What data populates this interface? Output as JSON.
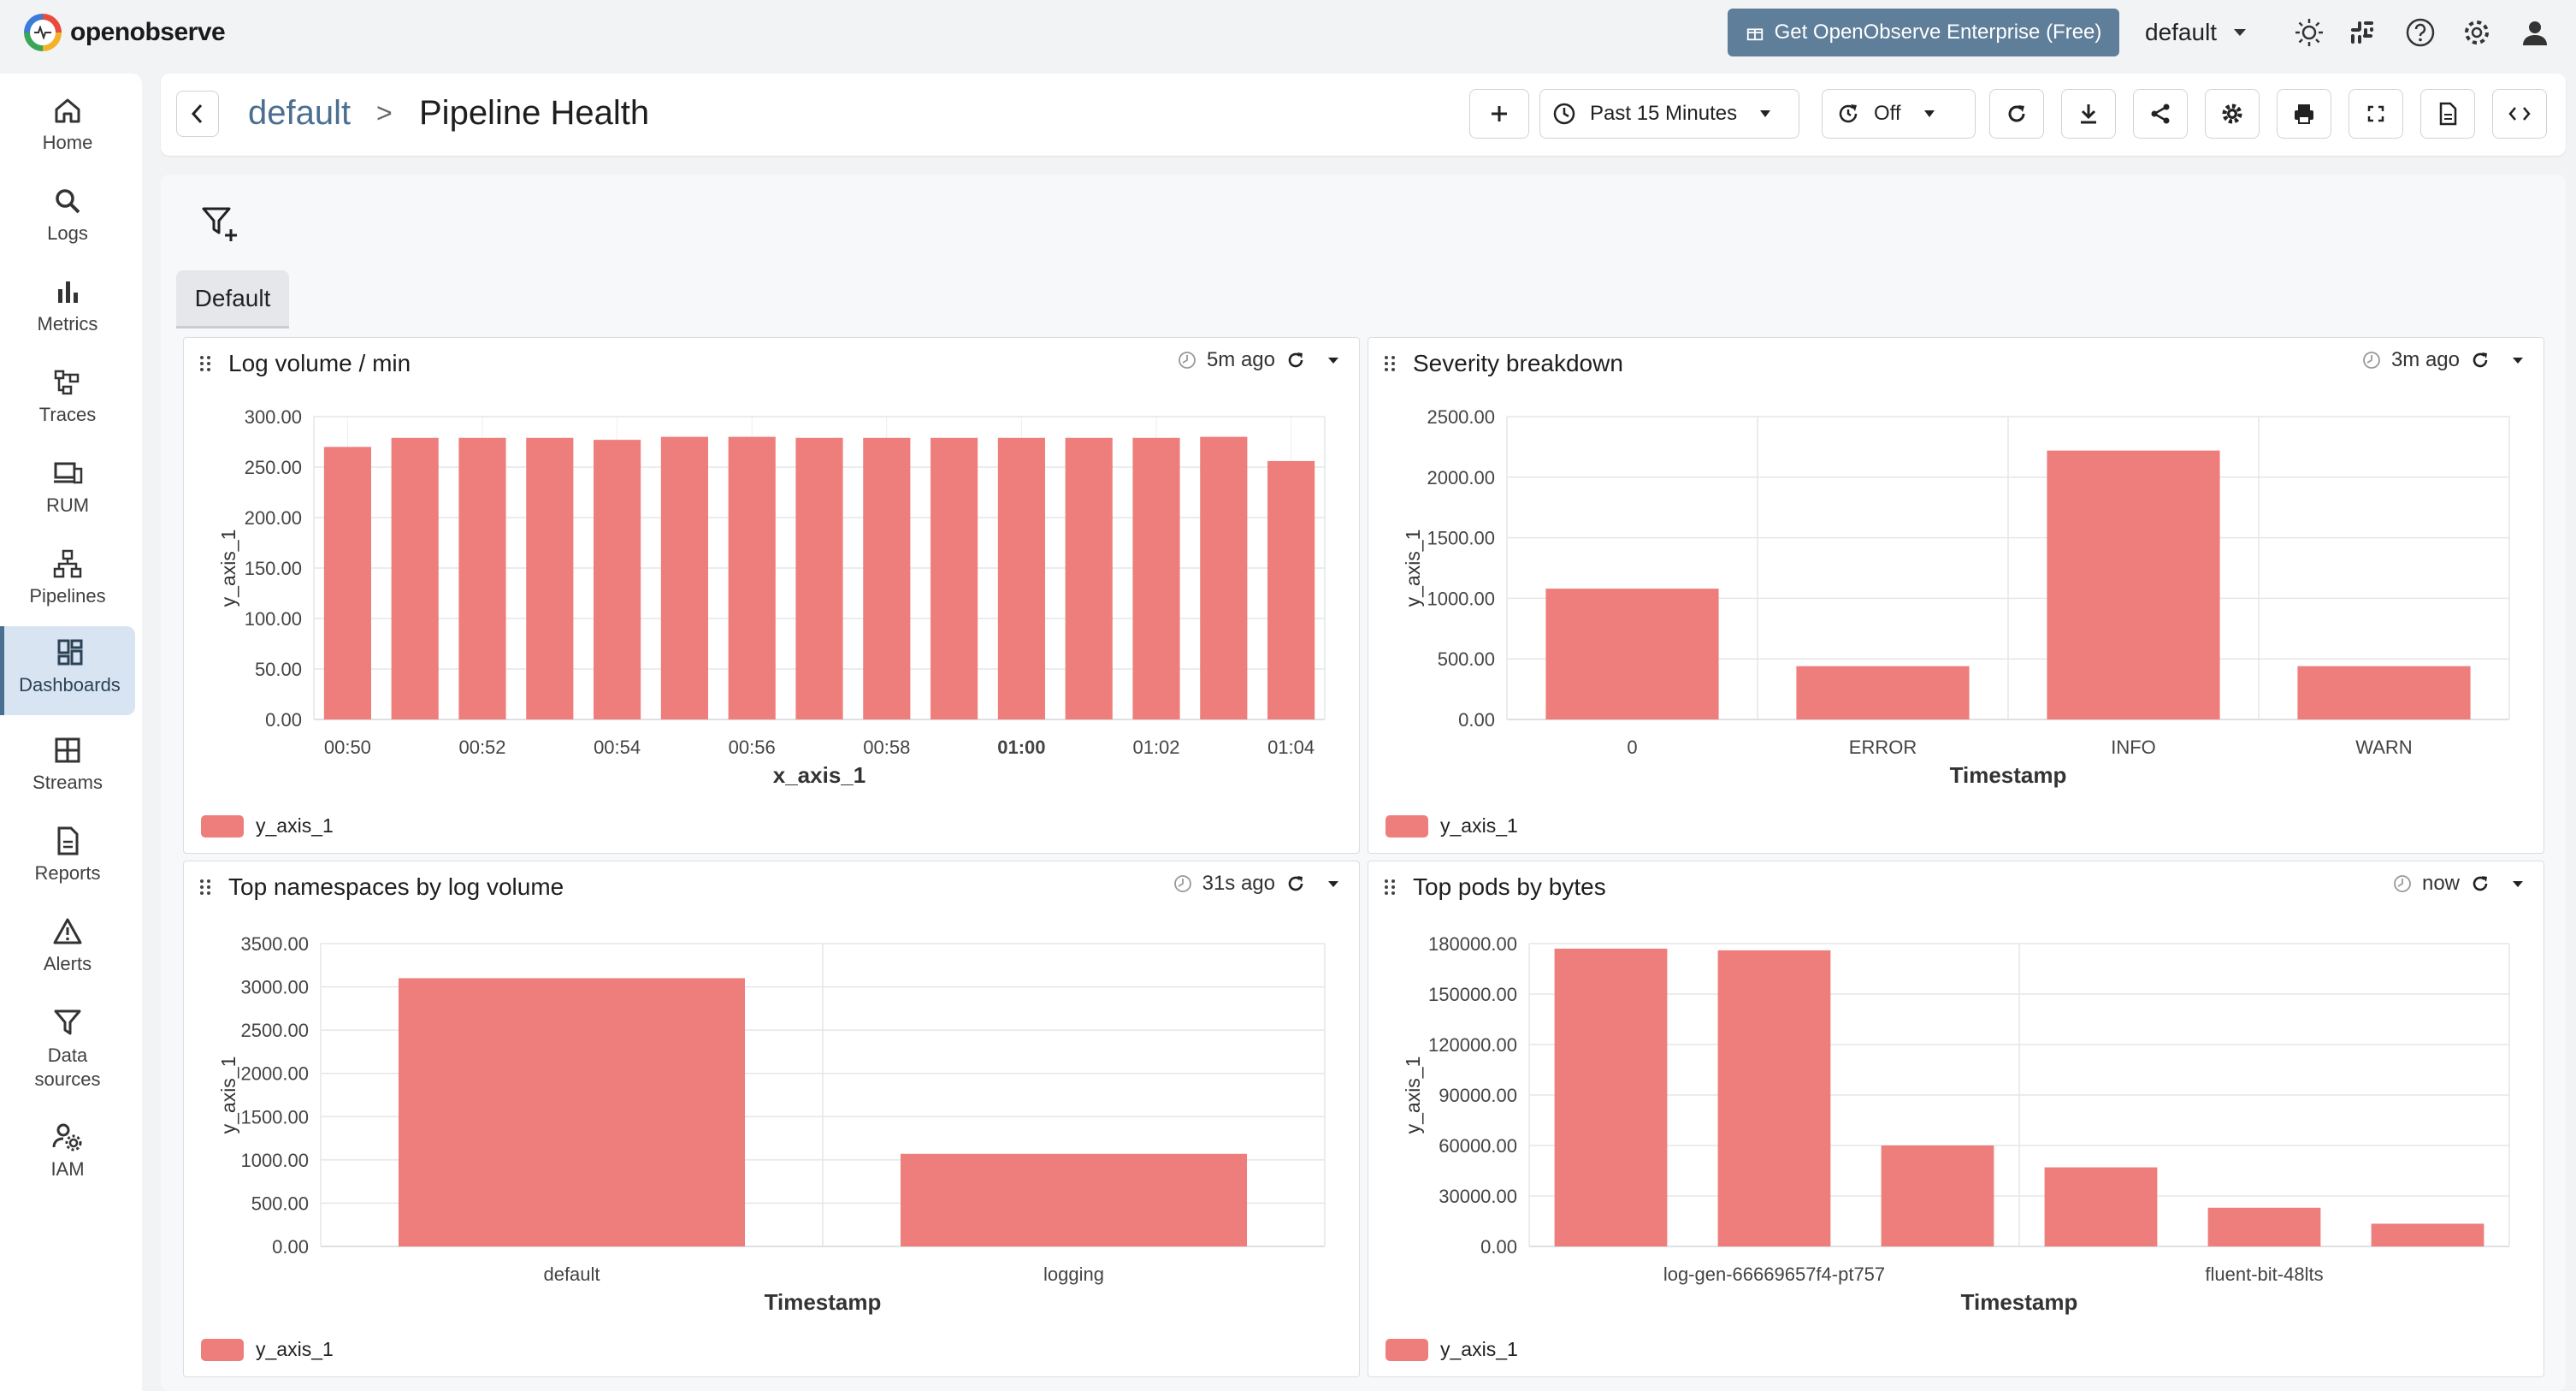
{
  "app": {
    "logo_text": "openobserve"
  },
  "topbar": {
    "enterprise_label": "Get OpenObserve Enterprise (Free)",
    "org": "default",
    "icons": [
      "sun-icon",
      "slack-icon",
      "help-icon",
      "gear-icon",
      "user-icon"
    ]
  },
  "sidebar": {
    "items": [
      {
        "label": "Home",
        "icon": "home-icon"
      },
      {
        "label": "Logs",
        "icon": "search-icon"
      },
      {
        "label": "Metrics",
        "icon": "bar-chart-icon"
      },
      {
        "label": "Traces",
        "icon": "traces-icon"
      },
      {
        "label": "RUM",
        "icon": "devices-icon"
      },
      {
        "label": "Pipelines",
        "icon": "pipeline-icon"
      },
      {
        "label": "Dashboards",
        "icon": "dashboard-icon",
        "active": true
      },
      {
        "label": "Streams",
        "icon": "streams-icon"
      },
      {
        "label": "Reports",
        "icon": "report-icon"
      },
      {
        "label": "Alerts",
        "icon": "alert-icon"
      },
      {
        "label": "Data sources",
        "icon": "filter-icon"
      },
      {
        "label": "IAM",
        "icon": "users-gear-icon"
      }
    ]
  },
  "header": {
    "folder": "default",
    "separator": ">",
    "title": "Pipeline Health",
    "time_range": "Past 15 Minutes",
    "refresh": "Off"
  },
  "tabs": [
    {
      "label": "Default",
      "active": true
    }
  ],
  "colors": {
    "bar": "#ee7e7b",
    "accent": "#4b6f91",
    "enterprise": "#5e7e9a"
  },
  "panels": [
    {
      "title": "Log volume / min",
      "status": "5m ago",
      "legend": "y_axis_1",
      "chart_data": {
        "type": "bar",
        "x_tick_labels": [
          "00:50",
          "00:52",
          "00:54",
          "00:56",
          "00:58",
          "01:00",
          "01:02",
          "01:04"
        ],
        "bold_tick": "01:00",
        "values": [
          270,
          279,
          279,
          279,
          277,
          280,
          280,
          279,
          279,
          279,
          279,
          279,
          279,
          280,
          256
        ],
        "y_ticks": [
          "0.00",
          "50.00",
          "100.00",
          "150.00",
          "200.00",
          "250.00",
          "300.00"
        ],
        "ylim": [
          0,
          300
        ],
        "xlabel": "x_axis_1",
        "ylabel": "y_axis_1",
        "grid": true
      }
    },
    {
      "title": "Severity breakdown",
      "status": "3m ago",
      "legend": "y_axis_1",
      "chart_data": {
        "type": "bar",
        "categories": [
          "0",
          "ERROR",
          "INFO",
          "WARN"
        ],
        "values": [
          1080,
          440,
          2220,
          440
        ],
        "y_ticks": [
          "0.00",
          "500.00",
          "1000.00",
          "1500.00",
          "2000.00",
          "2500.00"
        ],
        "ylim": [
          0,
          2500
        ],
        "xlabel": "Timestamp",
        "ylabel": "y_axis_1",
        "grid": true
      }
    },
    {
      "title": "Top namespaces by log volume",
      "status": "31s ago",
      "legend": "y_axis_1",
      "chart_data": {
        "type": "bar",
        "categories": [
          "default",
          "logging"
        ],
        "values": [
          3100,
          1070
        ],
        "y_ticks": [
          "0.00",
          "500.00",
          "1000.00",
          "1500.00",
          "2000.00",
          "2500.00",
          "3000.00",
          "3500.00"
        ],
        "ylim": [
          0,
          3500
        ],
        "xlabel": "Timestamp",
        "ylabel": "y_axis_1",
        "grid": true
      }
    },
    {
      "title": "Top pods by bytes",
      "status": "now",
      "legend": "y_axis_1",
      "chart_data": {
        "type": "bar",
        "categories": [
          "log-gen-66669657f4-pt757",
          "",
          "",
          "fluent-bit-48lts",
          "",
          ""
        ],
        "values": [
          177000,
          176000,
          60000,
          47000,
          23000,
          13500
        ],
        "y_ticks": [
          "0.00",
          "30000.00",
          "60000.00",
          "90000.00",
          "120000.00",
          "150000.00",
          "180000.00"
        ],
        "ylim": [
          0,
          180000
        ],
        "xlabel": "Timestamp",
        "ylabel": "y_axis_1",
        "grid": true
      }
    }
  ]
}
